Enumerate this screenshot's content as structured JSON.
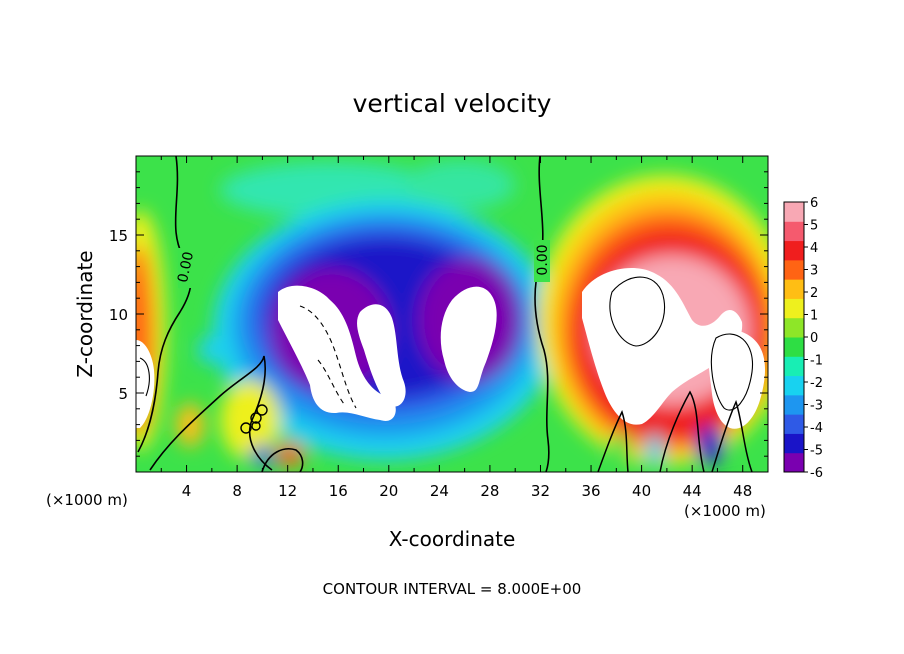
{
  "chart_data": {
    "type": "heatmap",
    "title": "vertical velocity",
    "xlabel": "X-coordinate",
    "ylabel": "Z-coordinate",
    "x_unit": "(×1000 m)",
    "x_unit_right": "(×1000 m)",
    "xlim": [
      0,
      50
    ],
    "ylim": [
      0,
      20
    ],
    "x_ticks": [
      4,
      8,
      12,
      16,
      20,
      24,
      28,
      32,
      36,
      40,
      44,
      48
    ],
    "y_ticks": [
      5,
      10,
      15
    ],
    "colorbar": {
      "min": -6,
      "max": 6,
      "ticks": [
        6,
        5,
        4,
        3,
        2,
        1,
        0,
        -1,
        -2,
        -3,
        -4,
        -5,
        -6
      ],
      "colors": [
        "#7a00b0",
        "#1a14c8",
        "#2f5ae6",
        "#1e96f0",
        "#18d2f0",
        "#18eeb4",
        "#2ede44",
        "#8ee628",
        "#eef01e",
        "#ffbe14",
        "#ff6414",
        "#f01e1e",
        "#f55a6e",
        "#f8a8b4"
      ]
    },
    "contour_labels": [
      "0.00",
      "0.00"
    ],
    "contour_interval_text": "CONTOUR INTERVAL =  8.000E+00",
    "features": [
      {
        "name": "background",
        "value": 0.5
      },
      {
        "name": "left edge updraft",
        "x": 0.3,
        "z": 8,
        "sx": 1.8,
        "sz": 7,
        "value": 6
      },
      {
        "name": "central downdraft",
        "x": 20,
        "z": 11,
        "sx": 9,
        "sz": 6,
        "value": -6
      },
      {
        "name": "right updraft",
        "x": 42,
        "z": 10,
        "sx": 8,
        "sz": 6,
        "value": 6
      },
      {
        "name": "weak updraft",
        "x": 8,
        "z": 7,
        "sx": 2,
        "sz": 3,
        "value": 2
      }
    ]
  }
}
